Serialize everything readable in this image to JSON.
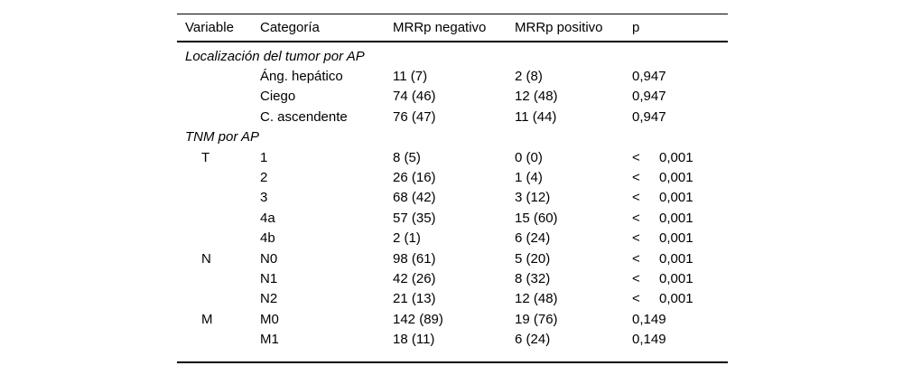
{
  "table": {
    "columns": [
      "Variable",
      "Categoría",
      "MRRp negativo",
      "MRRp positivo",
      "p"
    ],
    "rows": [
      {
        "type": "section",
        "label": "Localización del tumor por AP"
      },
      {
        "type": "data",
        "variable": "",
        "category": "Áng. hepático",
        "neg": "11 (7)",
        "pos": "2 (8)",
        "p_prefix": "",
        "p_value": "0,947"
      },
      {
        "type": "data",
        "variable": "",
        "category": "Ciego",
        "neg": "74 (46)",
        "pos": "12 (48)",
        "p_prefix": "",
        "p_value": "0,947"
      },
      {
        "type": "data",
        "variable": "",
        "category": "C. ascendente",
        "neg": "76 (47)",
        "pos": "11 (44)",
        "p_prefix": "",
        "p_value": "0,947"
      },
      {
        "type": "section",
        "label": "TNM por AP"
      },
      {
        "type": "data",
        "variable": "T",
        "category": "1",
        "neg": "8 (5)",
        "pos": "0 (0)",
        "p_prefix": "<",
        "p_value": "0,001"
      },
      {
        "type": "data",
        "variable": "",
        "category": "2",
        "neg": "26 (16)",
        "pos": "1 (4)",
        "p_prefix": "<",
        "p_value": "0,001"
      },
      {
        "type": "data",
        "variable": "",
        "category": "3",
        "neg": "68 (42)",
        "pos": "3 (12)",
        "p_prefix": "<",
        "p_value": "0,001"
      },
      {
        "type": "data",
        "variable": "",
        "category": "4a",
        "neg": "57 (35)",
        "pos": "15 (60)",
        "p_prefix": "<",
        "p_value": "0,001"
      },
      {
        "type": "data",
        "variable": "",
        "category": "4b",
        "neg": "2 (1)",
        "pos": "6 (24)",
        "p_prefix": "<",
        "p_value": "0,001"
      },
      {
        "type": "data",
        "variable": "N",
        "category": "N0",
        "neg": "98 (61)",
        "pos": "5 (20)",
        "p_prefix": "<",
        "p_value": "0,001"
      },
      {
        "type": "data",
        "variable": "",
        "category": "N1",
        "neg": "42 (26)",
        "pos": "8 (32)",
        "p_prefix": "<",
        "p_value": "0,001"
      },
      {
        "type": "data",
        "variable": "",
        "category": "N2",
        "neg": "21 (13)",
        "pos": "12 (48)",
        "p_prefix": "<",
        "p_value": "0,001"
      },
      {
        "type": "data",
        "variable": "M",
        "category": "M0",
        "neg": "142 (89)",
        "pos": "19 (76)",
        "p_prefix": "",
        "p_value": "0,149"
      },
      {
        "type": "data",
        "variable": "",
        "category": "M1",
        "neg": "18 (11)",
        "pos": "6 (24)",
        "p_prefix": "",
        "p_value": "0,149"
      }
    ],
    "text_color": "#000000",
    "background_color": "#ffffff"
  }
}
